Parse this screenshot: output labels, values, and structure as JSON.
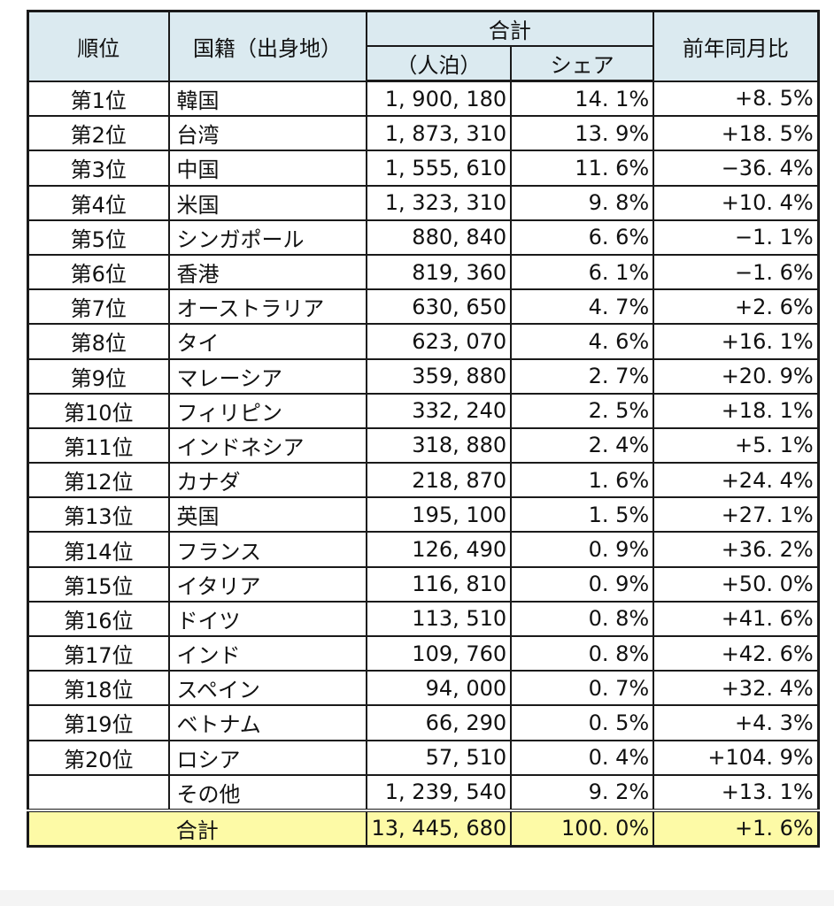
{
  "table": {
    "headers": {
      "rank": "順位",
      "country": "国籍（出身地）",
      "total_group": "合計",
      "stays": "（人泊）",
      "share": "シェア",
      "yoy": "前年同月比"
    },
    "rows": [
      {
        "rank": "第1位",
        "country": "韓国",
        "stays": "1, 900, 180",
        "share": "14. 1%",
        "yoy": "+8. 5%"
      },
      {
        "rank": "第2位",
        "country": "台湾",
        "stays": "1, 873, 310",
        "share": "13. 9%",
        "yoy": "+18. 5%"
      },
      {
        "rank": "第3位",
        "country": "中国",
        "stays": "1, 555, 610",
        "share": "11. 6%",
        "yoy": "−36. 4%"
      },
      {
        "rank": "第4位",
        "country": "米国",
        "stays": "1, 323, 310",
        "share": "9. 8%",
        "yoy": "+10. 4%"
      },
      {
        "rank": "第5位",
        "country": "シンガポール",
        "stays": "880, 840",
        "share": "6. 6%",
        "yoy": "−1. 1%"
      },
      {
        "rank": "第6位",
        "country": "香港",
        "stays": "819, 360",
        "share": "6. 1%",
        "yoy": "−1. 6%"
      },
      {
        "rank": "第7位",
        "country": "オーストラリア",
        "stays": "630, 650",
        "share": "4. 7%",
        "yoy": "+2. 6%"
      },
      {
        "rank": "第8位",
        "country": "タイ",
        "stays": "623, 070",
        "share": "4. 6%",
        "yoy": "+16. 1%"
      },
      {
        "rank": "第9位",
        "country": "マレーシア",
        "stays": "359, 880",
        "share": "2. 7%",
        "yoy": "+20. 9%"
      },
      {
        "rank": "第10位",
        "country": "フィリピン",
        "stays": "332, 240",
        "share": "2. 5%",
        "yoy": "+18. 1%"
      },
      {
        "rank": "第11位",
        "country": "インドネシア",
        "stays": "318, 880",
        "share": "2. 4%",
        "yoy": "+5. 1%"
      },
      {
        "rank": "第12位",
        "country": "カナダ",
        "stays": "218, 870",
        "share": "1. 6%",
        "yoy": "+24. 4%"
      },
      {
        "rank": "第13位",
        "country": "英国",
        "stays": "195, 100",
        "share": "1. 5%",
        "yoy": "+27. 1%"
      },
      {
        "rank": "第14位",
        "country": "フランス",
        "stays": "126, 490",
        "share": "0. 9%",
        "yoy": "+36. 2%"
      },
      {
        "rank": "第15位",
        "country": "イタリア",
        "stays": "116, 810",
        "share": "0. 9%",
        "yoy": "+50. 0%"
      },
      {
        "rank": "第16位",
        "country": "ドイツ",
        "stays": "113, 510",
        "share": "0. 8%",
        "yoy": "+41. 6%"
      },
      {
        "rank": "第17位",
        "country": "インド",
        "stays": "109, 760",
        "share": "0. 8%",
        "yoy": "+42. 6%"
      },
      {
        "rank": "第18位",
        "country": "スペイン",
        "stays": "94, 000",
        "share": "0. 7%",
        "yoy": "+32. 4%"
      },
      {
        "rank": "第19位",
        "country": "ベトナム",
        "stays": "66, 290",
        "share": "0. 5%",
        "yoy": "+4. 3%"
      },
      {
        "rank": "第20位",
        "country": "ロシア",
        "stays": "57, 510",
        "share": "0. 4%",
        "yoy": "+104. 9%"
      },
      {
        "rank": "",
        "country": "その他",
        "stays": "1, 239, 540",
        "share": "9. 2%",
        "yoy": "+13. 1%"
      }
    ],
    "total": {
      "label": "合計",
      "stays": "13, 445, 680",
      "share": "100. 0%",
      "yoy": "+1. 6%"
    }
  },
  "colors": {
    "header_bg": "#dbeaf0",
    "total_bg": "#fdfaa6",
    "border": "#1a1a1a"
  }
}
